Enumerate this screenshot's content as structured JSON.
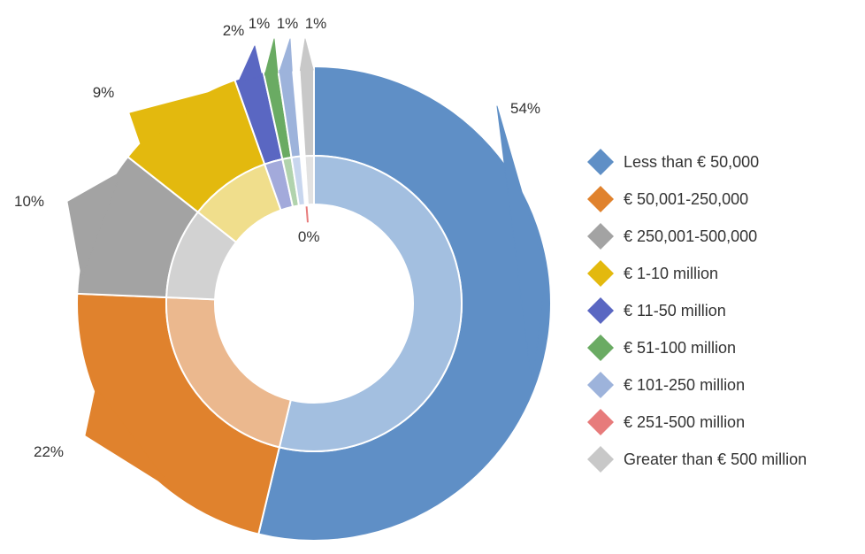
{
  "chart_data": {
    "type": "pie",
    "variant": "nested-donut",
    "categories": [
      "Less than € 50,000",
      "€ 50,001-250,000",
      "€ 250,001-500,000",
      "€ 1-10 million",
      "€ 11-50 million",
      "€ 51-100 million",
      "€ 101-250 million",
      "€ 251-500 million",
      "Greater than € 500 million"
    ],
    "colors": [
      "#5f8fc6",
      "#e0822d",
      "#a3a3a3",
      "#e3b90e",
      "#5a67c2",
      "#6aab63",
      "#9db3db",
      "#e77b7b",
      "#c8c8c8"
    ],
    "inner_colors": [
      "#a3bfe0",
      "#ebb88e",
      "#d2d2d2",
      "#f0de8c",
      "#a3aadb",
      "#b1d3ad",
      "#c8d6ee",
      "#f0b0b0",
      "#e2e2e2"
    ],
    "outer_values": [
      54,
      22,
      10,
      9,
      2,
      1,
      1,
      0,
      1
    ],
    "outer_labels": [
      "54%",
      "22%",
      "10%",
      "9%",
      "2%",
      "1%",
      "1%",
      "0%",
      "1%"
    ],
    "inner_values": [
      54,
      22,
      10,
      9,
      2,
      1,
      1,
      0,
      1
    ],
    "legend_position": "right",
    "title": ""
  },
  "legend": {
    "items": [
      "Less than € 50,000",
      "€ 50,001-250,000",
      "€ 250,001-500,000",
      "€ 1-10 million",
      "€ 11-50 million",
      "€ 51-100 million",
      "€ 101-250 million",
      "€ 251-500 million",
      "Greater than € 500 million"
    ]
  }
}
